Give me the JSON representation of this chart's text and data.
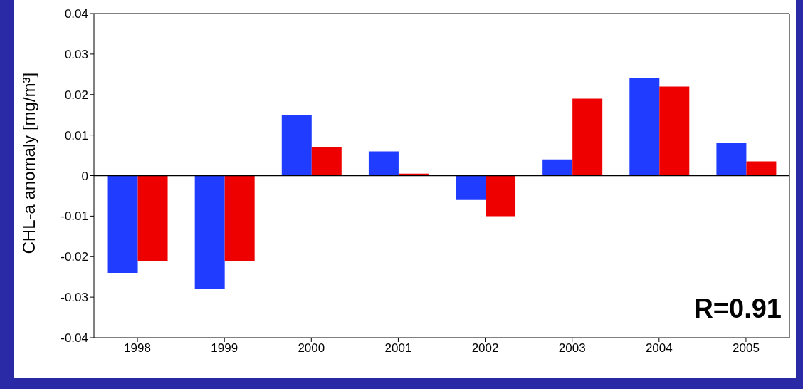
{
  "chart_data": {
    "type": "bar",
    "ylabel": "CHL-a anomaly [mg/m³]",
    "categories": [
      "1998",
      "1999",
      "2000",
      "2001",
      "2002",
      "2003",
      "2004",
      "2005"
    ],
    "series": [
      {
        "color": "#1f3cff",
        "values": [
          -0.024,
          -0.028,
          0.015,
          0.006,
          -0.006,
          0.004,
          0.024,
          0.008
        ]
      },
      {
        "color": "#ee0000",
        "values": [
          -0.021,
          -0.021,
          0.007,
          0.0005,
          -0.01,
          0.019,
          0.022,
          0.0035
        ]
      }
    ],
    "ylim": [
      -0.04,
      0.04
    ],
    "yticks": [
      -0.04,
      -0.03,
      -0.02,
      -0.01,
      0,
      0.01,
      0.02,
      0.03,
      0.04
    ],
    "ref_lines": [
      {
        "axis": "y",
        "value": 0,
        "color": "#000000"
      }
    ],
    "annotations": [
      "R=0.91"
    ],
    "grid": false,
    "legend": false
  }
}
